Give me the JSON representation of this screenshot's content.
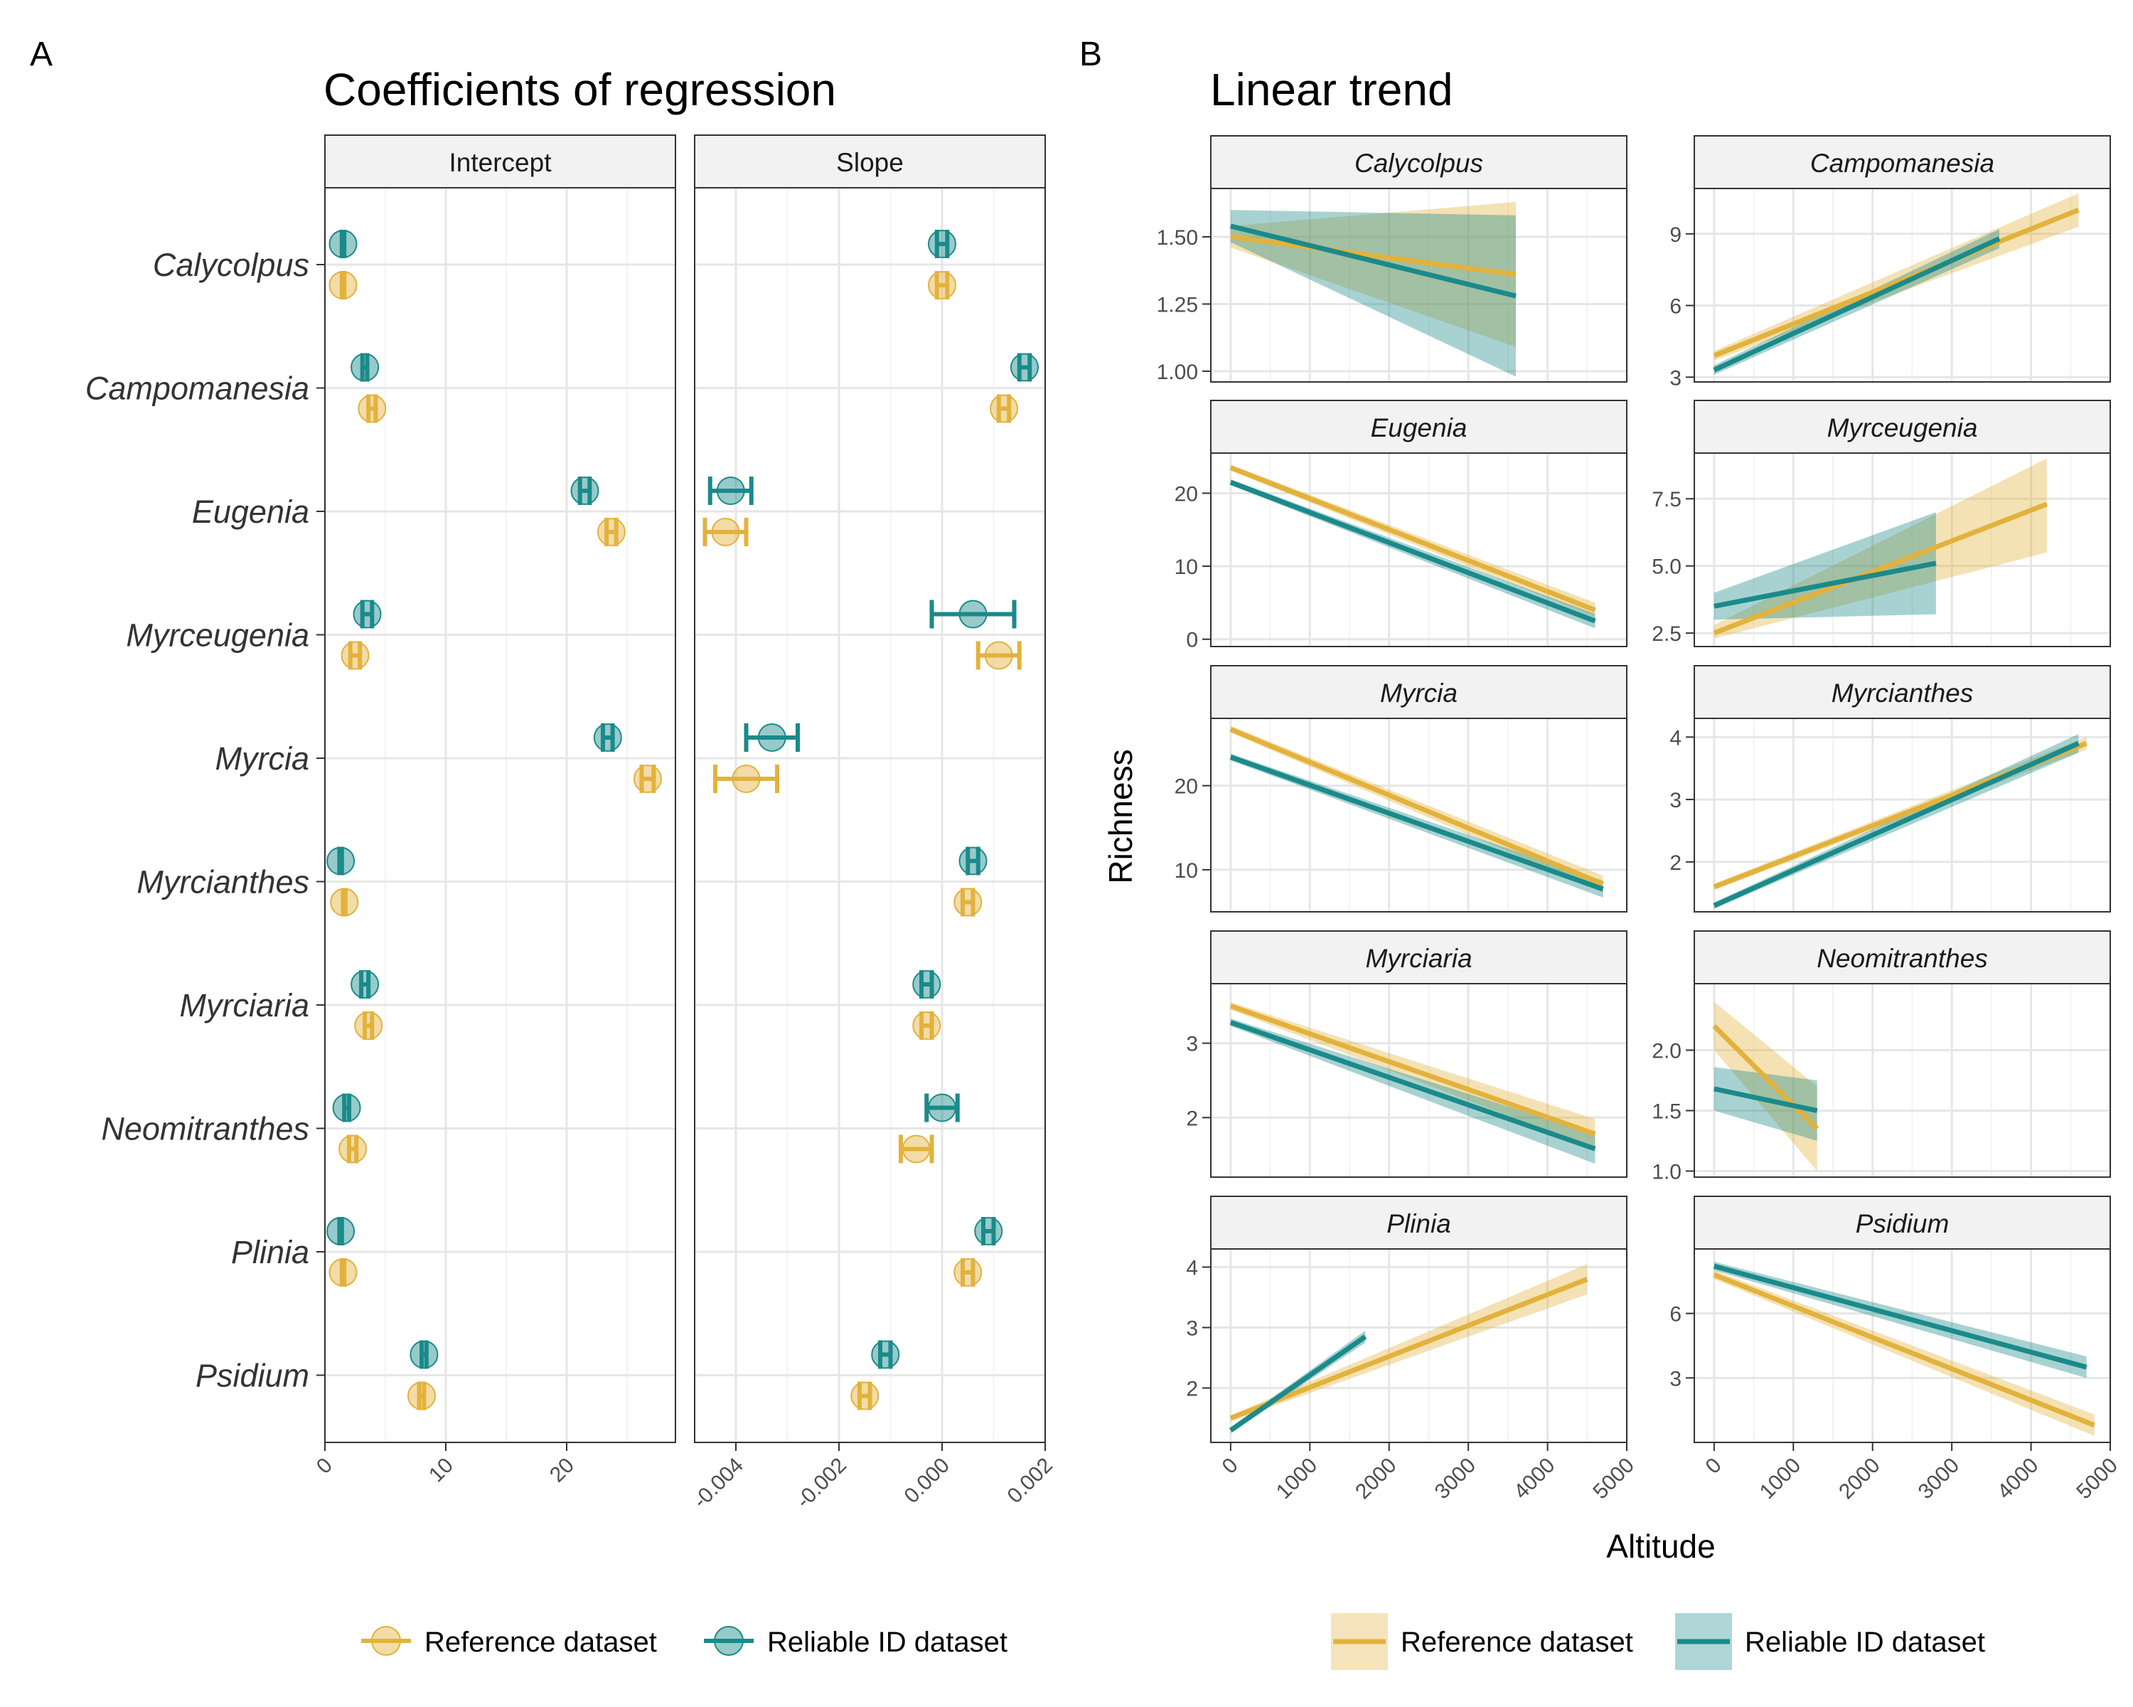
{
  "colors": {
    "reference": "#E3B23C",
    "reliable": "#1B8A8A"
  },
  "panel_a": {
    "letter": "A",
    "title": "Coefficients of regression",
    "facets": [
      "Intercept",
      "Slope"
    ],
    "genera": [
      "Calycolpus",
      "Campomanesia",
      "Eugenia",
      "Myrceugenia",
      "Myrcia",
      "Myrcianthes",
      "Myrciaria",
      "Neomitranthes",
      "Plinia",
      "Psidium"
    ],
    "intercept_ticks": [
      "0",
      "10",
      "20"
    ],
    "slope_ticks": [
      "-0.004",
      "-0.002",
      "0.000",
      "0.002"
    ],
    "legend": {
      "reference": "Reference dataset",
      "reliable": "Reliable ID dataset"
    }
  },
  "panel_b": {
    "letter": "B",
    "title": "Linear trend",
    "ylabel": "Richness",
    "xlabel": "Altitude",
    "x_ticks": [
      "0",
      "1000",
      "2000",
      "3000",
      "4000",
      "5000"
    ],
    "legend": {
      "reference": "Reference dataset",
      "reliable": "Reliable ID dataset"
    }
  },
  "chart_data": [
    {
      "type": "scatter",
      "title": "Coefficients of regression",
      "facet": "Intercept",
      "categories": [
        "Calycolpus",
        "Campomanesia",
        "Eugenia",
        "Myrceugenia",
        "Myrcia",
        "Myrcianthes",
        "Myrciaria",
        "Neomitranthes",
        "Plinia",
        "Psidium"
      ],
      "xlim": [
        0,
        29
      ],
      "series": [
        {
          "name": "Reliable ID dataset",
          "values": [
            1.5,
            3.3,
            21.5,
            3.5,
            23.4,
            1.3,
            3.3,
            1.8,
            1.3,
            8.2
          ],
          "err_low": [
            1.4,
            3.1,
            21.1,
            3.1,
            23.0,
            1.2,
            3.0,
            1.6,
            1.2,
            8.0
          ],
          "err_high": [
            1.6,
            3.5,
            21.9,
            3.9,
            23.8,
            1.4,
            3.6,
            2.0,
            1.4,
            8.4
          ]
        },
        {
          "name": "Reference dataset",
          "values": [
            1.5,
            3.9,
            23.7,
            2.5,
            26.7,
            1.6,
            3.6,
            2.3,
            1.5,
            8.0
          ],
          "err_low": [
            1.4,
            3.6,
            23.3,
            2.1,
            26.2,
            1.5,
            3.3,
            2.0,
            1.4,
            7.8
          ],
          "err_high": [
            1.6,
            4.2,
            24.1,
            2.9,
            27.2,
            1.7,
            3.9,
            2.6,
            1.6,
            8.2
          ]
        }
      ]
    },
    {
      "type": "scatter",
      "title": "Coefficients of regression",
      "facet": "Slope",
      "categories": [
        "Calycolpus",
        "Campomanesia",
        "Eugenia",
        "Myrceugenia",
        "Myrcia",
        "Myrcianthes",
        "Myrciaria",
        "Neomitranthes",
        "Plinia",
        "Psidium"
      ],
      "xlim": [
        -0.0048,
        0.002
      ],
      "series": [
        {
          "name": "Reliable ID dataset",
          "values": [
            0.0,
            0.0016,
            -0.0041,
            0.0006,
            -0.0033,
            0.0006,
            -0.0003,
            0.0,
            0.0009,
            -0.0011
          ],
          "err_low": [
            -0.0001,
            0.0015,
            -0.0045,
            -0.0002,
            -0.0038,
            0.0005,
            -0.0004,
            -0.0003,
            0.0008,
            -0.0012
          ],
          "err_high": [
            0.0001,
            0.0017,
            -0.0037,
            0.0014,
            -0.0028,
            0.0007,
            -0.0002,
            0.0003,
            0.001,
            -0.001
          ]
        },
        {
          "name": "Reference dataset",
          "values": [
            0.0,
            0.0012,
            -0.0042,
            0.0011,
            -0.0038,
            0.0005,
            -0.0003,
            -0.0005,
            0.0005,
            -0.0015
          ],
          "err_low": [
            -0.0001,
            0.0011,
            -0.0046,
            0.0007,
            -0.0044,
            0.0004,
            -0.0004,
            -0.0008,
            0.0004,
            -0.0016
          ],
          "err_high": [
            0.0001,
            0.0013,
            -0.0038,
            0.0015,
            -0.0032,
            0.0006,
            -0.0002,
            -0.0002,
            0.0006,
            -0.0014
          ]
        }
      ]
    },
    {
      "type": "line",
      "title": "Linear trend",
      "xlabel": "Altitude",
      "ylabel": "Richness",
      "xlim": [
        -250,
        5000
      ],
      "facets": [
        {
          "name": "Calycolpus",
          "ylim": [
            0.96,
            1.68
          ],
          "yticks": [
            1.0,
            1.25,
            1.5
          ],
          "ytick_labels": [
            "1.00",
            "1.25",
            "1.50"
          ],
          "reference": {
            "x": [
              0,
              3600
            ],
            "y": [
              1.5,
              1.36
            ],
            "ci_low": [
              1.46,
              1.09
            ],
            "ci_high": [
              1.54,
              1.63
            ]
          },
          "reliable": {
            "x": [
              0,
              3600
            ],
            "y": [
              1.54,
              1.28
            ],
            "ci_low": [
              1.48,
              0.98
            ],
            "ci_high": [
              1.6,
              1.58
            ]
          }
        },
        {
          "name": "Campomanesia",
          "ylim": [
            2.8,
            10.9
          ],
          "yticks": [
            3,
            6,
            9
          ],
          "ytick_labels": [
            "3",
            "6",
            "9"
          ],
          "reference": {
            "x": [
              0,
              4600
            ],
            "y": [
              3.9,
              10.0
            ],
            "ci_low": [
              3.7,
              9.3
            ],
            "ci_high": [
              4.1,
              10.7
            ]
          },
          "reliable": {
            "x": [
              0,
              3600
            ],
            "y": [
              3.3,
              8.8
            ],
            "ci_low": [
              3.1,
              8.4
            ],
            "ci_high": [
              3.5,
              9.2
            ]
          }
        },
        {
          "name": "Eugenia",
          "ylim": [
            -1,
            25.5
          ],
          "yticks": [
            0,
            10,
            20
          ],
          "ytick_labels": [
            "0",
            "10",
            "20"
          ],
          "reference": {
            "x": [
              0,
              4600
            ],
            "y": [
              23.5,
              4.0
            ],
            "ci_low": [
              23.1,
              3.0
            ],
            "ci_high": [
              23.9,
              5.0
            ]
          },
          "reliable": {
            "x": [
              0,
              4600
            ],
            "y": [
              21.5,
              2.5
            ],
            "ci_low": [
              21.1,
              1.5
            ],
            "ci_high": [
              21.9,
              3.5
            ]
          }
        },
        {
          "name": "Myrceugenia",
          "ylim": [
            2.0,
            9.2
          ],
          "yticks": [
            2.5,
            5.0,
            7.5
          ],
          "ytick_labels": [
            "2.5",
            "5.0",
            "7.5"
          ],
          "reference": {
            "x": [
              0,
              4200
            ],
            "y": [
              2.5,
              7.3
            ],
            "ci_low": [
              2.3,
              5.5
            ],
            "ci_high": [
              2.8,
              9.0
            ]
          },
          "reliable": {
            "x": [
              0,
              2800
            ],
            "y": [
              3.5,
              5.1
            ],
            "ci_low": [
              3.0,
              3.2
            ],
            "ci_high": [
              4.0,
              7.0
            ]
          }
        },
        {
          "name": "Myrcia",
          "ylim": [
            5,
            28
          ],
          "yticks": [
            10,
            20
          ],
          "ytick_labels": [
            "10",
            "20"
          ],
          "reference": {
            "x": [
              0,
              4700
            ],
            "y": [
              26.7,
              8.3
            ],
            "ci_low": [
              26.3,
              7.3
            ],
            "ci_high": [
              27.1,
              9.3
            ]
          },
          "reliable": {
            "x": [
              0,
              4700
            ],
            "y": [
              23.4,
              7.7
            ],
            "ci_low": [
              23.0,
              6.7
            ],
            "ci_high": [
              23.8,
              8.7
            ]
          }
        },
        {
          "name": "Myrcianthes",
          "ylim": [
            1.2,
            4.3
          ],
          "yticks": [
            2,
            3,
            4
          ],
          "ytick_labels": [
            "2",
            "3",
            "4"
          ],
          "reference": {
            "x": [
              0,
              4700
            ],
            "y": [
              1.6,
              3.9
            ],
            "ci_low": [
              1.55,
              3.8
            ],
            "ci_high": [
              1.65,
              4.0
            ]
          },
          "reliable": {
            "x": [
              0,
              4600
            ],
            "y": [
              1.3,
              3.9
            ],
            "ci_low": [
              1.25,
              3.75
            ],
            "ci_high": [
              1.35,
              4.05
            ]
          }
        },
        {
          "name": "Myrciaria",
          "ylim": [
            1.2,
            3.8
          ],
          "yticks": [
            2,
            3
          ],
          "ytick_labels": [
            "2",
            "3"
          ],
          "reference": {
            "x": [
              0,
              4600
            ],
            "y": [
              3.5,
              1.78
            ],
            "ci_low": [
              3.45,
              1.58
            ],
            "ci_high": [
              3.55,
              1.98
            ]
          },
          "reliable": {
            "x": [
              0,
              4600
            ],
            "y": [
              3.28,
              1.58
            ],
            "ci_low": [
              3.23,
              1.38
            ],
            "ci_high": [
              3.33,
              1.78
            ]
          }
        },
        {
          "name": "Neomitranthes",
          "ylim": [
            0.95,
            2.55
          ],
          "yticks": [
            1.0,
            1.5,
            2.0
          ],
          "ytick_labels": [
            "1.0",
            "1.5",
            "2.0"
          ],
          "reference": {
            "x": [
              0,
              1300
            ],
            "y": [
              2.2,
              1.35
            ],
            "ci_low": [
              2.0,
              1.0
            ],
            "ci_high": [
              2.4,
              1.7
            ]
          },
          "reliable": {
            "x": [
              0,
              1300
            ],
            "y": [
              1.68,
              1.5
            ],
            "ci_low": [
              1.5,
              1.25
            ],
            "ci_high": [
              1.86,
              1.75
            ]
          }
        },
        {
          "name": "Plinia",
          "ylim": [
            1.1,
            4.3
          ],
          "yticks": [
            2,
            3,
            4
          ],
          "ytick_labels": [
            "2",
            "3",
            "4"
          ],
          "reference": {
            "x": [
              0,
              4500
            ],
            "y": [
              1.5,
              3.8
            ],
            "ci_low": [
              1.45,
              3.55
            ],
            "ci_high": [
              1.55,
              4.05
            ]
          },
          "reliable": {
            "x": [
              0,
              1700
            ],
            "y": [
              1.3,
              2.85
            ],
            "ci_low": [
              1.25,
              2.75
            ],
            "ci_high": [
              1.35,
              2.95
            ]
          }
        },
        {
          "name": "Psidium",
          "ylim": [
            0,
            9
          ],
          "yticks": [
            3,
            6
          ],
          "ytick_labels": [
            "3",
            "6"
          ],
          "reference": {
            "x": [
              0,
              4800
            ],
            "y": [
              7.8,
              0.8
            ],
            "ci_low": [
              7.6,
              0.3
            ],
            "ci_high": [
              8.0,
              1.3
            ]
          },
          "reliable": {
            "x": [
              0,
              4700
            ],
            "y": [
              8.2,
              3.5
            ],
            "ci_low": [
              8.0,
              3.0
            ],
            "ci_high": [
              8.4,
              4.0
            ]
          }
        }
      ]
    }
  ]
}
